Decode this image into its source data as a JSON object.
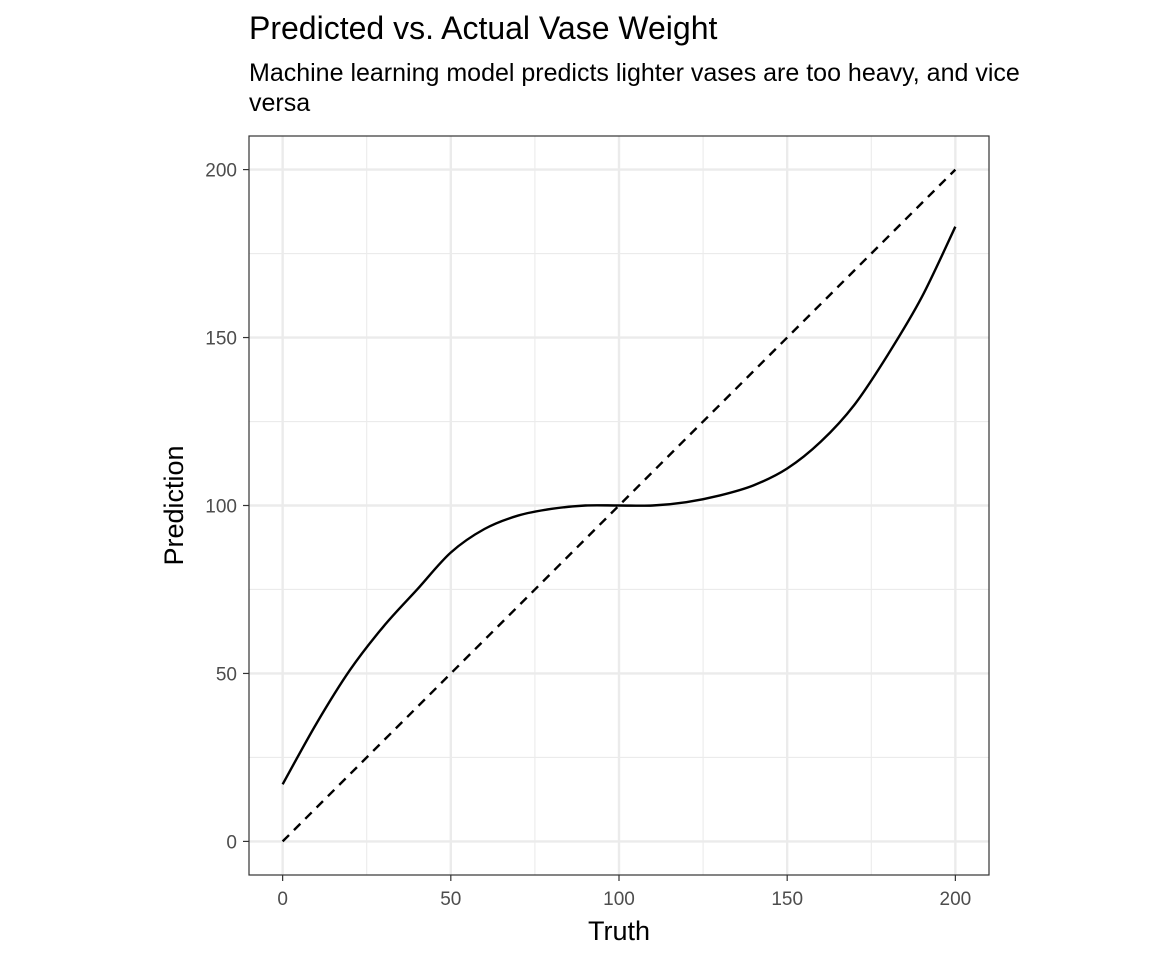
{
  "chart_data": {
    "type": "line",
    "title": "Predicted vs. Actual Vase Weight",
    "subtitle": "Machine learning model predicts lighter vases are too heavy, and vice versa",
    "xlabel": "Truth",
    "ylabel": "Prediction",
    "xlim": [
      -10,
      210
    ],
    "ylim": [
      -10,
      210
    ],
    "xticks": [
      0,
      50,
      100,
      150,
      200
    ],
    "yticks": [
      0,
      50,
      100,
      150,
      200
    ],
    "grid": true,
    "series": [
      {
        "style": "solid",
        "color": "#000000",
        "x": [
          0,
          10,
          20,
          30,
          40,
          50,
          60,
          70,
          80,
          90,
          100,
          110,
          120,
          130,
          140,
          150,
          160,
          170,
          180,
          190,
          200
        ],
        "y": [
          17,
          35,
          51,
          64,
          75,
          86,
          93,
          97,
          99,
          100,
          100,
          100,
          101,
          103,
          106,
          111,
          119,
          130,
          145,
          162,
          183
        ]
      },
      {
        "style": "dashed",
        "color": "#000000",
        "x": [
          0,
          200
        ],
        "y": [
          0,
          200
        ]
      }
    ]
  },
  "colors": {
    "grid": "#ebebeb",
    "panel_border": "#333333",
    "tick_text": "#4d4d4d"
  }
}
